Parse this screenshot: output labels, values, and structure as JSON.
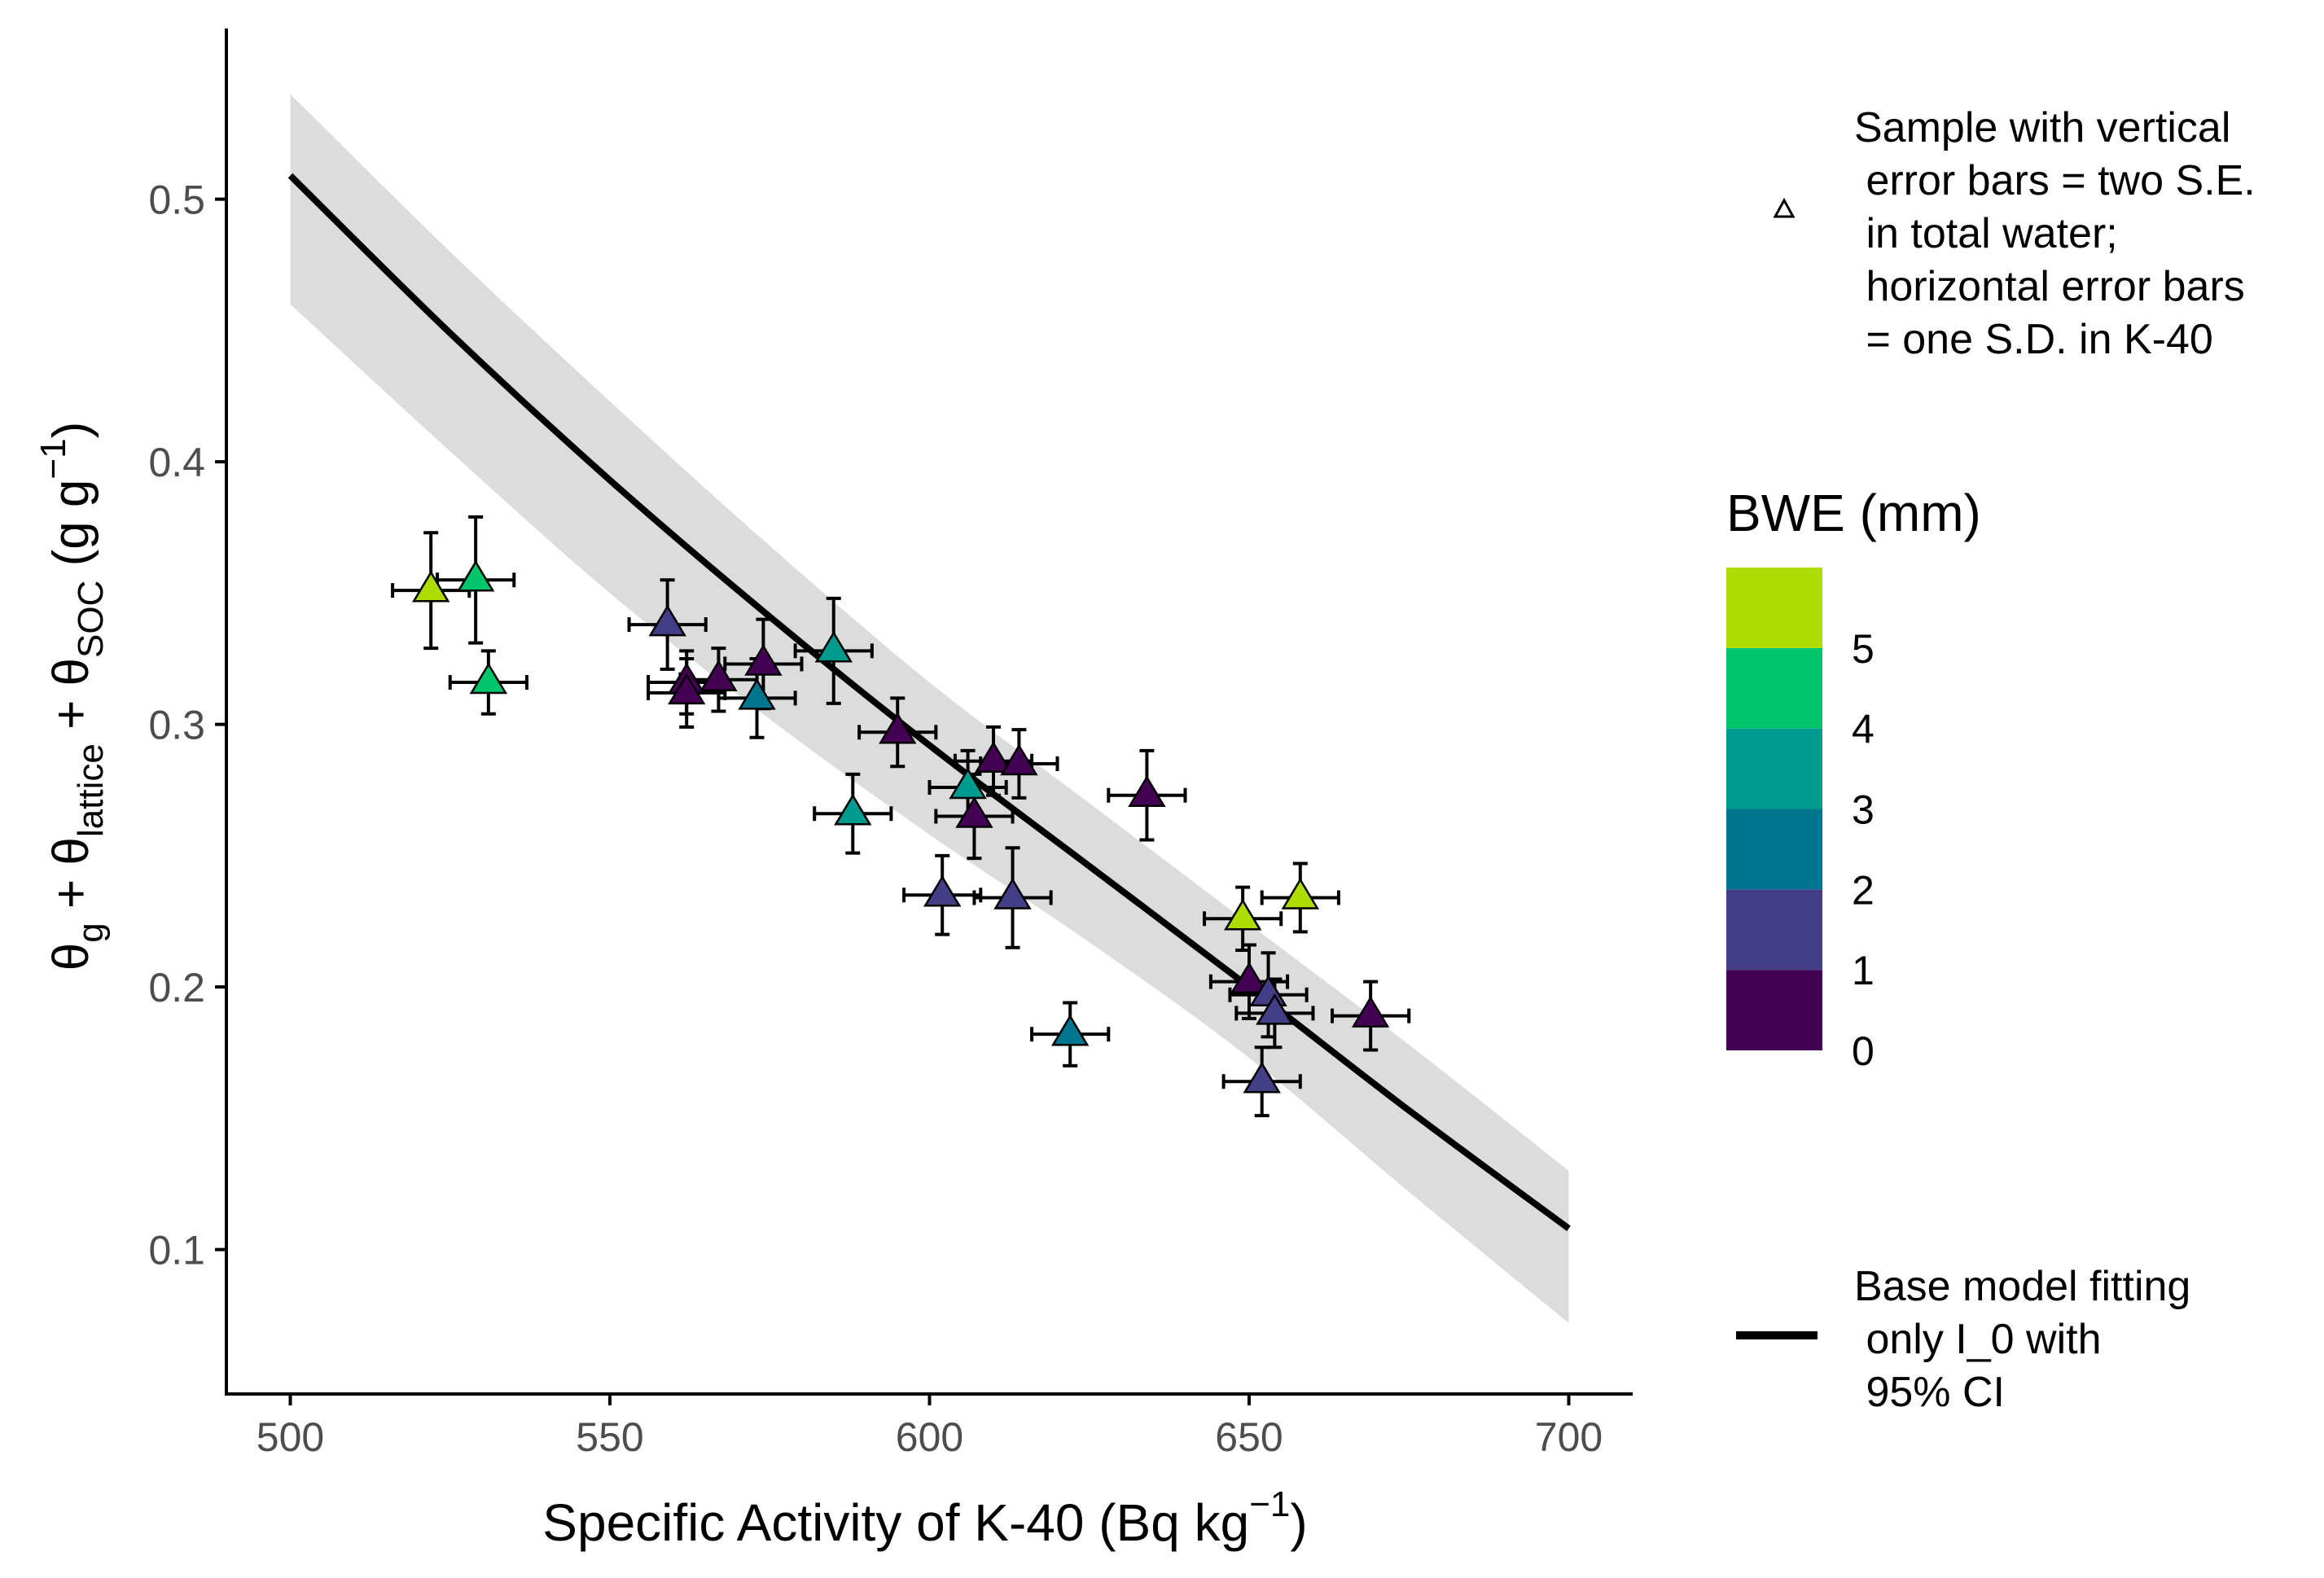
{
  "chart_data": {
    "type": "scatter",
    "title": "",
    "xlabel_main": "Specific Activity of K-40 (Bq kg",
    "xlabel_sup": "−1",
    "xlabel_close": ")",
    "ylabel": {
      "theta1": "θ",
      "sub1": "g",
      "plus1": " + ",
      "theta2": "θ",
      "sub2": "lattice",
      "plus2": " + ",
      "theta3": "θ",
      "sub3": "SOC",
      "unit_open": " (g g",
      "unit_sup": "−1",
      "unit_close": ")"
    },
    "xlim": [
      490,
      710
    ],
    "ylim": [
      0.045,
      0.565
    ],
    "x_ticks": [
      500,
      550,
      600,
      650,
      700
    ],
    "x_tick_labels": [
      "500",
      "550",
      "600",
      "650",
      "700"
    ],
    "y_ticks": [
      0.1,
      0.2,
      0.3,
      0.4,
      0.5
    ],
    "y_tick_labels": [
      "0.1",
      "0.2",
      "0.3",
      "0.4",
      "0.5"
    ],
    "grid": false,
    "fit_curve": {
      "name": "Base model fitting only I_0 with 95% CI",
      "x": [
        500,
        525,
        550,
        575,
        600,
        625,
        650,
        675,
        700
      ],
      "y": [
        0.509,
        0.449,
        0.393,
        0.341,
        0.292,
        0.246,
        0.2,
        0.153,
        0.108
      ]
    },
    "ci_band": {
      "x": [
        500,
        525,
        550,
        575,
        600,
        625,
        650,
        675,
        700
      ],
      "upper": [
        0.54,
        0.48,
        0.423,
        0.368,
        0.316,
        0.27,
        0.224,
        0.178,
        0.13
      ],
      "lower": [
        0.46,
        0.404,
        0.35,
        0.302,
        0.258,
        0.217,
        0.173,
        0.122,
        0.072
      ]
    },
    "points": [
      {
        "x": 522,
        "y": 0.351,
        "xerr": 6,
        "yerr": 0.022,
        "bwe": 5.3
      },
      {
        "x": 529,
        "y": 0.355,
        "xerr": 6,
        "yerr": 0.024,
        "bwe": 4.6
      },
      {
        "x": 531,
        "y": 0.316,
        "xerr": 6,
        "yerr": 0.012,
        "bwe": 4.6
      },
      {
        "x": 559,
        "y": 0.338,
        "xerr": 6,
        "yerr": 0.017,
        "bwe": 1.8
      },
      {
        "x": 562,
        "y": 0.316,
        "xerr": 6,
        "yerr": 0.012,
        "bwe": 0.4
      },
      {
        "x": 562,
        "y": 0.312,
        "xerr": 6,
        "yerr": 0.013,
        "bwe": 0.4
      },
      {
        "x": 567,
        "y": 0.317,
        "xerr": 6,
        "yerr": 0.012,
        "bwe": 0.4
      },
      {
        "x": 573,
        "y": 0.31,
        "xerr": 6,
        "yerr": 0.015,
        "bwe": 2.6
      },
      {
        "x": 574,
        "y": 0.323,
        "xerr": 6,
        "yerr": 0.017,
        "bwe": 0.5
      },
      {
        "x": 585,
        "y": 0.328,
        "xerr": 6,
        "yerr": 0.02,
        "bwe": 3.6
      },
      {
        "x": 588,
        "y": 0.266,
        "xerr": 6,
        "yerr": 0.015,
        "bwe": 3.6
      },
      {
        "x": 595,
        "y": 0.297,
        "xerr": 6,
        "yerr": 0.013,
        "bwe": 0.4
      },
      {
        "x": 602,
        "y": 0.235,
        "xerr": 6,
        "yerr": 0.015,
        "bwe": 1.8
      },
      {
        "x": 606,
        "y": 0.276,
        "xerr": 6,
        "yerr": 0.014,
        "bwe": 3.6
      },
      {
        "x": 607,
        "y": 0.265,
        "xerr": 6,
        "yerr": 0.016,
        "bwe": 0.4
      },
      {
        "x": 610,
        "y": 0.286,
        "xerr": 6,
        "yerr": 0.013,
        "bwe": 0.4
      },
      {
        "x": 613,
        "y": 0.234,
        "xerr": 6,
        "yerr": 0.019,
        "bwe": 1.8
      },
      {
        "x": 614,
        "y": 0.285,
        "xerr": 6,
        "yerr": 0.013,
        "bwe": 0.4
      },
      {
        "x": 622,
        "y": 0.182,
        "xerr": 6,
        "yerr": 0.012,
        "bwe": 2.6
      },
      {
        "x": 634,
        "y": 0.273,
        "xerr": 6,
        "yerr": 0.017,
        "bwe": 0.4
      },
      {
        "x": 649,
        "y": 0.226,
        "xerr": 6,
        "yerr": 0.012,
        "bwe": 5.3
      },
      {
        "x": 650,
        "y": 0.202,
        "xerr": 6,
        "yerr": 0.014,
        "bwe": 0.4
      },
      {
        "x": 652,
        "y": 0.164,
        "xerr": 6,
        "yerr": 0.013,
        "bwe": 1.8
      },
      {
        "x": 653,
        "y": 0.197,
        "xerr": 6,
        "yerr": 0.016,
        "bwe": 1.8
      },
      {
        "x": 654,
        "y": 0.19,
        "xerr": 6,
        "yerr": 0.013,
        "bwe": 1.8
      },
      {
        "x": 658,
        "y": 0.234,
        "xerr": 6,
        "yerr": 0.013,
        "bwe": 5.3
      },
      {
        "x": 669,
        "y": 0.189,
        "xerr": 6,
        "yerr": 0.013,
        "bwe": 0.4
      }
    ],
    "legend_point": {
      "line1": "Sample with vertical",
      "line2": " error bars = two S.E.",
      "line3": " in total water;",
      "line4": " horizontal error bars",
      "line5": " = one S.D. in K-40"
    },
    "colorbar": {
      "title": "BWE (mm)",
      "bands": [
        {
          "from": 0,
          "to": 1,
          "color": "#440154"
        },
        {
          "from": 1,
          "to": 2,
          "color": "#433E85"
        },
        {
          "from": 2,
          "to": 3,
          "color": "#00758F"
        },
        {
          "from": 3,
          "to": 4,
          "color": "#009B8F"
        },
        {
          "from": 4,
          "to": 5,
          "color": "#00C66B"
        },
        {
          "from": 5,
          "to": 6,
          "color": "#ADDD00"
        }
      ],
      "tick_values": [
        0,
        1,
        2,
        3,
        4,
        5
      ],
      "tick_labels": [
        "0",
        "1",
        "2",
        "3",
        "4",
        "5"
      ]
    },
    "legend_line": {
      "line1": "Base model fitting",
      "line2": " only I_0 with",
      "line3": " 95% CI"
    },
    "colors": {
      "line": "#000000",
      "ci_band": "#DCDCDC",
      "axis": "#000000",
      "tick_label": "#4D4D4D",
      "text": "#000000"
    }
  }
}
